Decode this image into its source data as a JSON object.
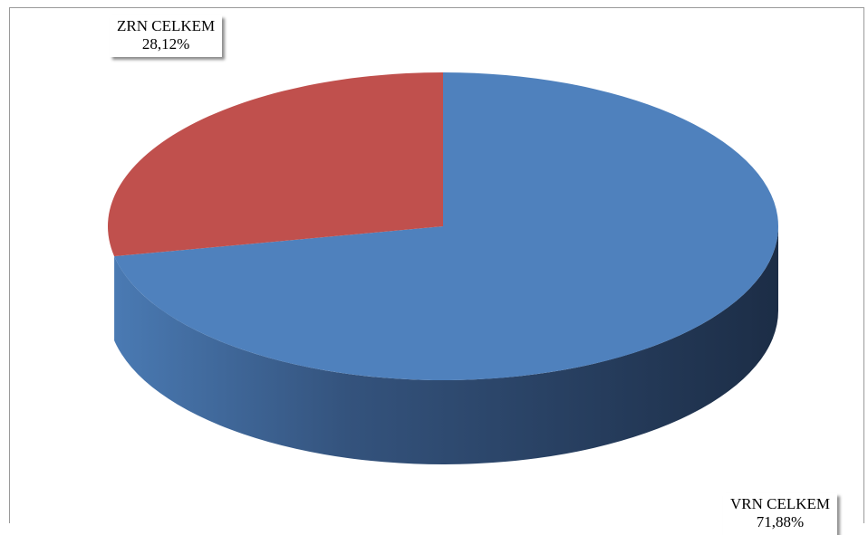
{
  "chart_data": {
    "type": "pie",
    "style": "3d",
    "categories": [
      "VRN CELKEM",
      "ZRN CELKEM"
    ],
    "values": [
      71.88,
      28.12
    ],
    "labels": [
      {
        "category": "VRN CELKEM",
        "percent": "71,88%"
      },
      {
        "category": "ZRN CELKEM",
        "percent": "28,12%"
      }
    ],
    "colors": [
      "#4f81bd",
      "#c0504d"
    ],
    "legend": "none",
    "title": ""
  }
}
